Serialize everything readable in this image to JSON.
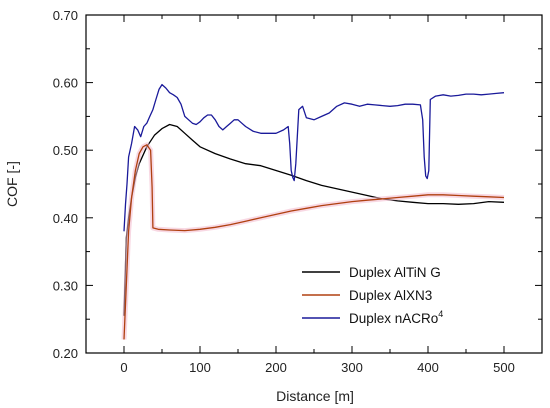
{
  "chart_data": {
    "type": "line",
    "xlabel": "Distance [m]",
    "ylabel": "COF [-]",
    "xlim": [
      -50,
      550
    ],
    "ylim": [
      0.2,
      0.7
    ],
    "xticks": [
      0,
      100,
      200,
      300,
      400,
      500
    ],
    "yticks": [
      0.2,
      0.3,
      0.4,
      0.5,
      0.6,
      0.7
    ],
    "ytick_labels": [
      "0.20",
      "0.30",
      "0.40",
      "0.50",
      "0.60",
      "0.70"
    ],
    "xtick_labels": [
      "0",
      "100",
      "200",
      "300",
      "400",
      "500"
    ],
    "grid": false,
    "legend_position": "bottom-right",
    "series": [
      {
        "name": "Duplex AlTiN G",
        "color": "#000000",
        "points": [
          [
            0,
            0.255
          ],
          [
            3,
            0.37
          ],
          [
            6,
            0.4
          ],
          [
            10,
            0.43
          ],
          [
            15,
            0.46
          ],
          [
            20,
            0.48
          ],
          [
            30,
            0.505
          ],
          [
            40,
            0.522
          ],
          [
            50,
            0.532
          ],
          [
            60,
            0.538
          ],
          [
            70,
            0.535
          ],
          [
            80,
            0.525
          ],
          [
            90,
            0.515
          ],
          [
            100,
            0.505
          ],
          [
            120,
            0.495
          ],
          [
            140,
            0.487
          ],
          [
            160,
            0.48
          ],
          [
            180,
            0.477
          ],
          [
            200,
            0.47
          ],
          [
            220,
            0.463
          ],
          [
            240,
            0.455
          ],
          [
            260,
            0.448
          ],
          [
            280,
            0.443
          ],
          [
            300,
            0.438
          ],
          [
            320,
            0.433
          ],
          [
            340,
            0.428
          ],
          [
            360,
            0.425
          ],
          [
            380,
            0.423
          ],
          [
            400,
            0.421
          ],
          [
            420,
            0.421
          ],
          [
            440,
            0.42
          ],
          [
            460,
            0.421
          ],
          [
            480,
            0.424
          ],
          [
            500,
            0.423
          ]
        ]
      },
      {
        "name": "Duplex AlXN3",
        "color": "#b04010",
        "points": [
          [
            0,
            0.22
          ],
          [
            3,
            0.3
          ],
          [
            6,
            0.38
          ],
          [
            10,
            0.43
          ],
          [
            15,
            0.47
          ],
          [
            20,
            0.495
          ],
          [
            25,
            0.505
          ],
          [
            30,
            0.508
          ],
          [
            35,
            0.5
          ],
          [
            37,
            0.445
          ],
          [
            38,
            0.385
          ],
          [
            45,
            0.383
          ],
          [
            60,
            0.382
          ],
          [
            80,
            0.381
          ],
          [
            100,
            0.383
          ],
          [
            120,
            0.386
          ],
          [
            140,
            0.39
          ],
          [
            160,
            0.395
          ],
          [
            180,
            0.4
          ],
          [
            200,
            0.405
          ],
          [
            220,
            0.41
          ],
          [
            240,
            0.414
          ],
          [
            260,
            0.418
          ],
          [
            280,
            0.421
          ],
          [
            300,
            0.424
          ],
          [
            320,
            0.426
          ],
          [
            340,
            0.428
          ],
          [
            360,
            0.43
          ],
          [
            380,
            0.432
          ],
          [
            400,
            0.434
          ],
          [
            420,
            0.434
          ],
          [
            440,
            0.433
          ],
          [
            460,
            0.432
          ],
          [
            480,
            0.431
          ],
          [
            500,
            0.43
          ]
        ]
      },
      {
        "name": "Duplex nACRo",
        "name_sup": "4",
        "color": "#1a1a9a",
        "points": [
          [
            0,
            0.38
          ],
          [
            2,
            0.42
          ],
          [
            4,
            0.45
          ],
          [
            6,
            0.49
          ],
          [
            10,
            0.51
          ],
          [
            14,
            0.535
          ],
          [
            18,
            0.53
          ],
          [
            22,
            0.52
          ],
          [
            26,
            0.535
          ],
          [
            30,
            0.54
          ],
          [
            34,
            0.55
          ],
          [
            38,
            0.56
          ],
          [
            42,
            0.575
          ],
          [
            46,
            0.59
          ],
          [
            50,
            0.597
          ],
          [
            55,
            0.592
          ],
          [
            60,
            0.585
          ],
          [
            65,
            0.582
          ],
          [
            70,
            0.578
          ],
          [
            75,
            0.568
          ],
          [
            80,
            0.55
          ],
          [
            85,
            0.545
          ],
          [
            90,
            0.54
          ],
          [
            95,
            0.538
          ],
          [
            100,
            0.542
          ],
          [
            105,
            0.548
          ],
          [
            110,
            0.552
          ],
          [
            115,
            0.552
          ],
          [
            120,
            0.545
          ],
          [
            125,
            0.535
          ],
          [
            130,
            0.53
          ],
          [
            135,
            0.535
          ],
          [
            140,
            0.54
          ],
          [
            145,
            0.545
          ],
          [
            150,
            0.545
          ],
          [
            155,
            0.54
          ],
          [
            160,
            0.535
          ],
          [
            170,
            0.528
          ],
          [
            180,
            0.525
          ],
          [
            190,
            0.525
          ],
          [
            200,
            0.525
          ],
          [
            210,
            0.53
          ],
          [
            216,
            0.535
          ],
          [
            218,
            0.51
          ],
          [
            220,
            0.47
          ],
          [
            222,
            0.46
          ],
          [
            224,
            0.455
          ],
          [
            226,
            0.48
          ],
          [
            228,
            0.52
          ],
          [
            230,
            0.56
          ],
          [
            235,
            0.565
          ],
          [
            240,
            0.548
          ],
          [
            250,
            0.545
          ],
          [
            260,
            0.55
          ],
          [
            270,
            0.555
          ],
          [
            280,
            0.565
          ],
          [
            290,
            0.57
          ],
          [
            300,
            0.568
          ],
          [
            310,
            0.565
          ],
          [
            320,
            0.568
          ],
          [
            330,
            0.567
          ],
          [
            340,
            0.566
          ],
          [
            350,
            0.565
          ],
          [
            360,
            0.566
          ],
          [
            370,
            0.568
          ],
          [
            380,
            0.568
          ],
          [
            390,
            0.567
          ],
          [
            393,
            0.545
          ],
          [
            395,
            0.49
          ],
          [
            397,
            0.462
          ],
          [
            399,
            0.458
          ],
          [
            401,
            0.47
          ],
          [
            403,
            0.575
          ],
          [
            410,
            0.58
          ],
          [
            420,
            0.582
          ],
          [
            430,
            0.58
          ],
          [
            440,
            0.581
          ],
          [
            450,
            0.583
          ],
          [
            460,
            0.583
          ],
          [
            470,
            0.582
          ],
          [
            480,
            0.583
          ],
          [
            490,
            0.584
          ],
          [
            500,
            0.585
          ]
        ]
      }
    ]
  }
}
